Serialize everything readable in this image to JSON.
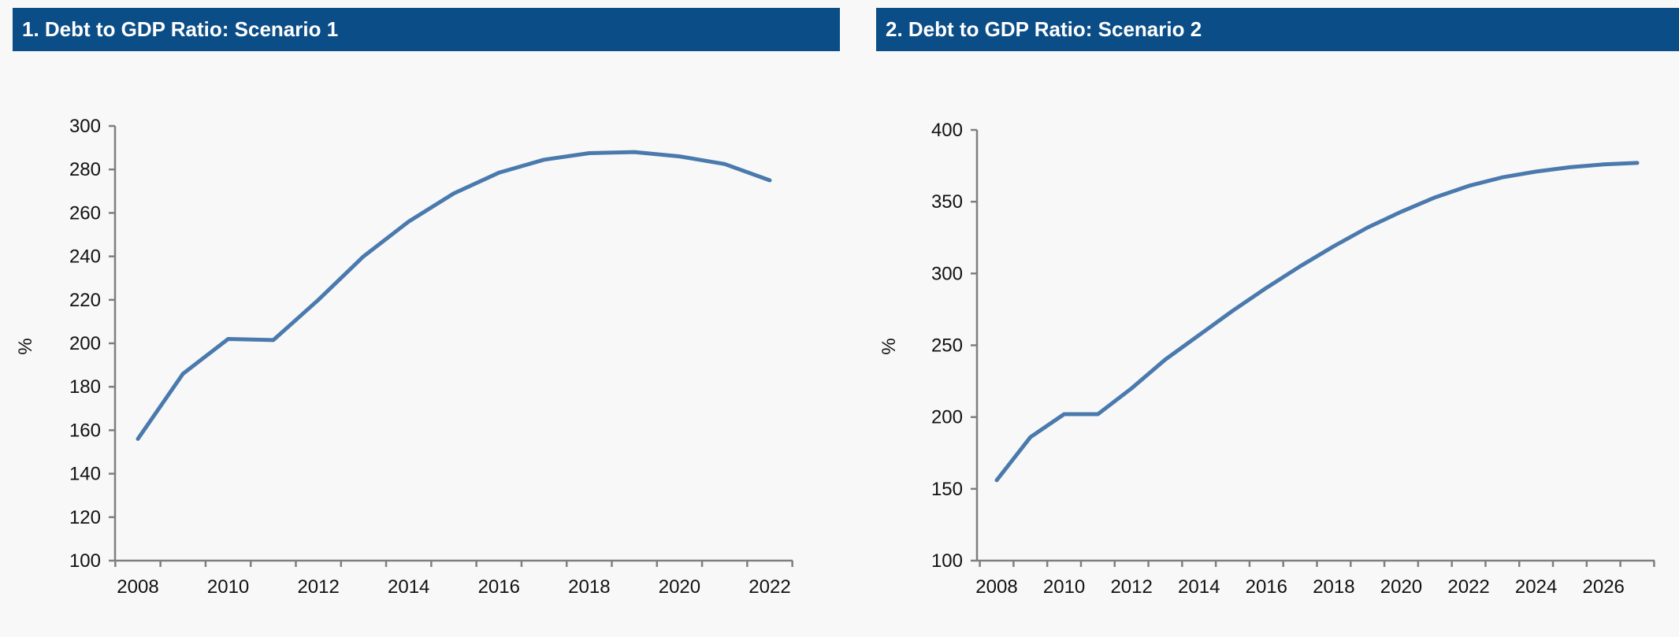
{
  "chart_data": [
    {
      "type": "line",
      "title": "1. Debt to GDP Ratio: Scenario 1",
      "xlabel": "",
      "ylabel": "%",
      "ylim": [
        100,
        300
      ],
      "yticks": [
        100,
        120,
        140,
        160,
        180,
        200,
        220,
        240,
        260,
        280,
        300
      ],
      "xlim": [
        2008,
        2023
      ],
      "xticks": [
        2008,
        2010,
        2012,
        2014,
        2016,
        2018,
        2020,
        2022
      ],
      "grid": false,
      "line_color": "#4a7aad",
      "series": [
        {
          "x": [
            2008,
            2009,
            2010,
            2011,
            2012,
            2013,
            2014,
            2015,
            2016,
            2017,
            2018,
            2019,
            2020,
            2021,
            2022
          ],
          "values": [
            156,
            186,
            202,
            201.5,
            220,
            240,
            256,
            269,
            278.5,
            284.5,
            287.5,
            288,
            286,
            282.5,
            275
          ]
        }
      ]
    },
    {
      "type": "line",
      "title": "2. Debt to GDP Ratio: Scenario 2",
      "xlabel": "",
      "ylabel": "%",
      "ylim": [
        100,
        400
      ],
      "yticks": [
        100,
        150,
        200,
        250,
        300,
        350,
        400
      ],
      "xlim": [
        2008,
        2028
      ],
      "xticks": [
        2008,
        2010,
        2012,
        2014,
        2016,
        2018,
        2020,
        2022,
        2024,
        2026
      ],
      "grid": false,
      "line_color": "#4a7aad",
      "series": [
        {
          "x": [
            2008,
            2009,
            2010,
            2011,
            2012,
            2013,
            2014,
            2015,
            2016,
            2017,
            2018,
            2019,
            2020,
            2021,
            2022,
            2023,
            2024,
            2025,
            2026,
            2027
          ],
          "values": [
            156,
            186,
            202,
            202,
            220,
            240,
            257,
            274,
            290,
            305,
            319,
            332,
            343,
            353,
            361,
            367,
            371,
            374,
            376,
            377
          ]
        }
      ]
    }
  ]
}
